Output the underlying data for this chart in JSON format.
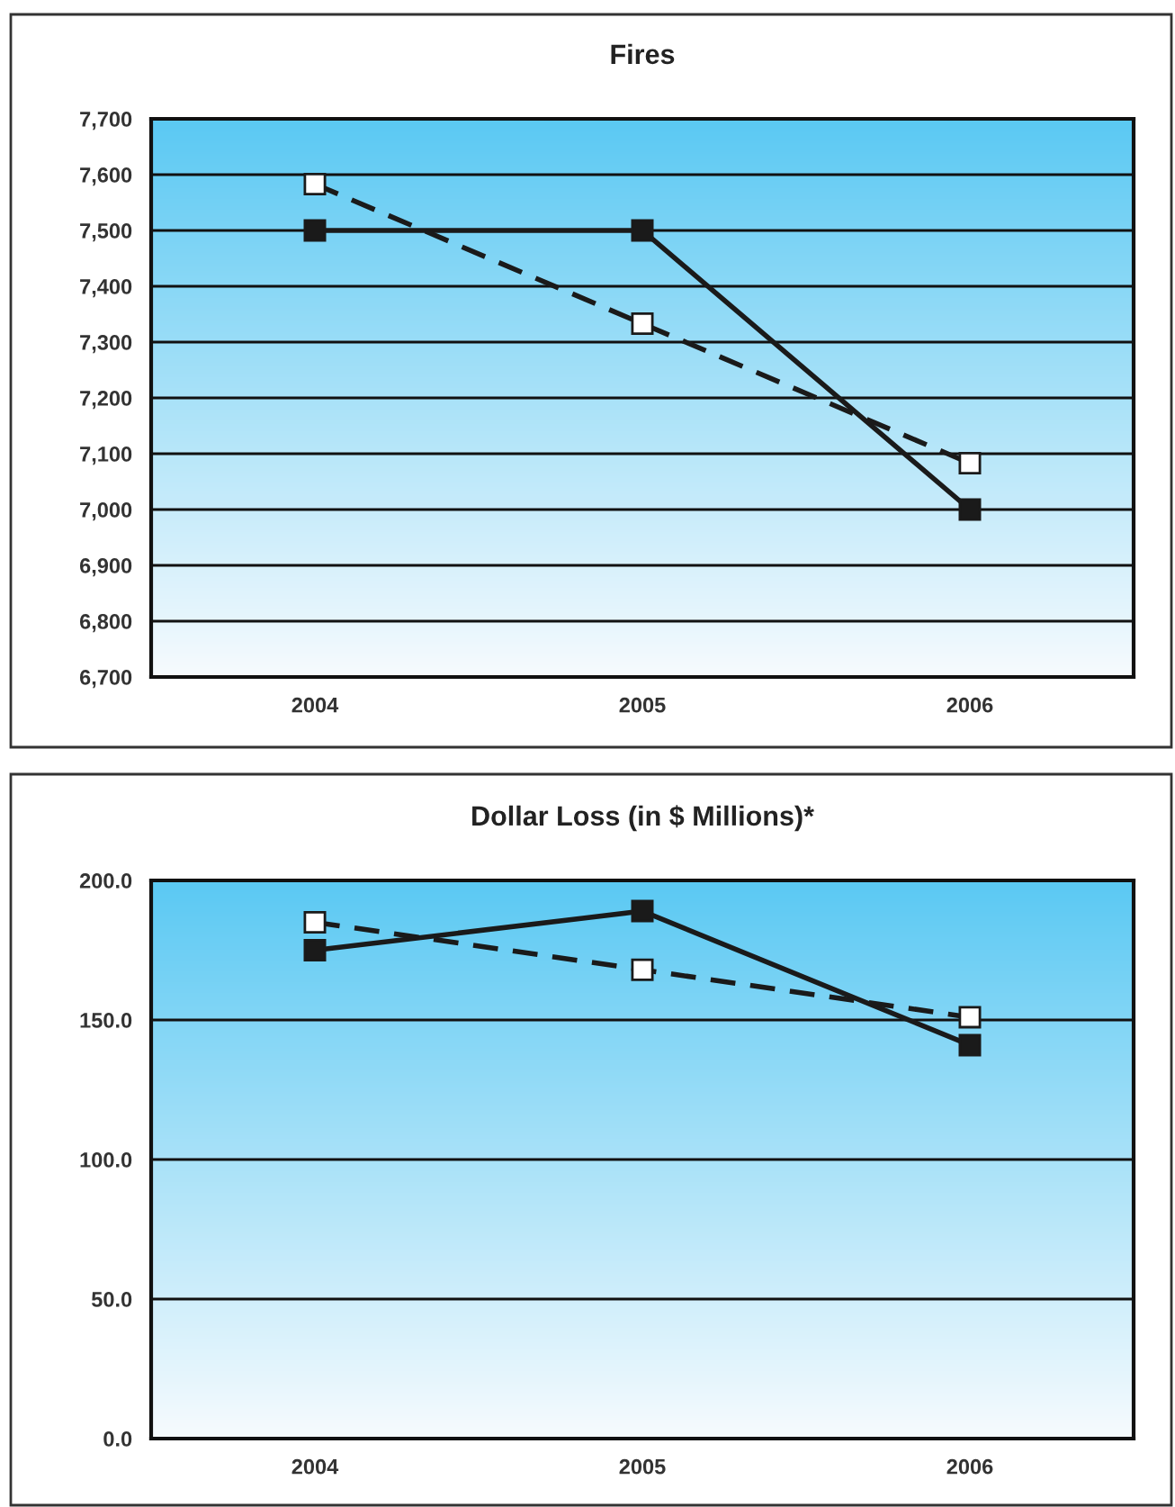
{
  "chart_data": [
    {
      "type": "line",
      "title": "Fires",
      "categories": [
        "2004",
        "2005",
        "2006"
      ],
      "series": [
        {
          "color": "#1a1a1a",
          "line_style": "solid",
          "marker": "square",
          "values": [
            7500,
            7500,
            7000
          ]
        },
        {
          "color": "#1a1a1a",
          "line_style": "dashed",
          "marker": "square",
          "values": [
            7583,
            7333,
            7083
          ]
        }
      ],
      "ylim": [
        6700,
        7700
      ],
      "yticks": [
        {
          "value": 6700,
          "label": "6,700"
        },
        {
          "value": 6800,
          "label": "6,800"
        },
        {
          "value": 6900,
          "label": "6,900"
        },
        {
          "value": 7000,
          "label": "7,000"
        },
        {
          "value": 7100,
          "label": "7,100"
        },
        {
          "value": 7200,
          "label": "7,200"
        },
        {
          "value": 7300,
          "label": "7,300"
        },
        {
          "value": 7400,
          "label": "7,400"
        },
        {
          "value": 7500,
          "label": "7,500"
        },
        {
          "value": 7600,
          "label": "7,600"
        },
        {
          "value": 7700,
          "label": "7,700"
        }
      ],
      "grid": "y",
      "legend": false
    },
    {
      "type": "line",
      "title": "Dollar Loss (in $ Millions)*",
      "categories": [
        "2004",
        "2005",
        "2006"
      ],
      "series": [
        {
          "color": "#1a1a1a",
          "line_style": "solid",
          "marker": "square",
          "values": [
            175,
            189,
            141
          ]
        },
        {
          "color": "#1a1a1a",
          "line_style": "dashed",
          "marker": "square",
          "values": [
            185,
            168,
            151
          ]
        }
      ],
      "ylim": [
        0,
        200
      ],
      "yticks": [
        {
          "value": 0,
          "label": "0.0"
        },
        {
          "value": 50,
          "label": "50.0"
        },
        {
          "value": 100,
          "label": "100.0"
        },
        {
          "value": 150,
          "label": "150.0"
        },
        {
          "value": 200,
          "label": "200.0"
        }
      ],
      "grid": "y",
      "legend": false
    }
  ]
}
